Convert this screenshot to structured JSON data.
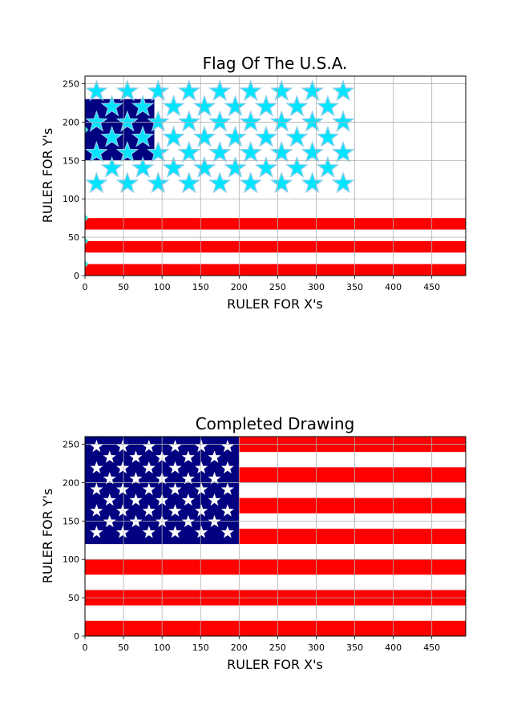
{
  "chart_data": [
    {
      "type": "flag-drawing",
      "title": "Flag Of The U.S.A.",
      "xlabel": "RULER FOR X's",
      "ylabel": "RULER FOR Y's",
      "xlim": [
        0,
        494
      ],
      "ylim": [
        0,
        260
      ],
      "xticks": [
        0,
        50,
        100,
        150,
        200,
        250,
        300,
        350,
        400,
        450
      ],
      "yticks": [
        0,
        50,
        100,
        150,
        200,
        250
      ],
      "grid": true,
      "stripes": [
        {
          "y": [
            0,
            15
          ],
          "color": "#ff0000"
        },
        {
          "y": [
            30,
            45
          ],
          "color": "#ff0000"
        },
        {
          "y": [
            60,
            75
          ],
          "color": "#ff0000"
        }
      ],
      "canton": {
        "x": [
          0,
          90
        ],
        "y": [
          150,
          230
        ],
        "color": "#000080"
      },
      "large_star_grid": {
        "rows": [
          {
            "y": 240,
            "x": [
              15,
              55,
              95,
              135,
              175,
              215,
              255,
              295,
              335
            ]
          },
          {
            "y": 220,
            "x": [
              35,
              75,
              115,
              155,
              195,
              235,
              275,
              315
            ]
          },
          {
            "y": 200,
            "x": [
              15,
              55,
              95,
              135,
              175,
              215,
              255,
              295,
              335
            ]
          },
          {
            "y": 180,
            "x": [
              35,
              75,
              115,
              155,
              195,
              235,
              275,
              315
            ]
          },
          {
            "y": 160,
            "x": [
              15,
              55,
              95,
              135,
              175,
              215,
              255,
              295,
              335
            ]
          },
          {
            "y": 140,
            "x": [
              35,
              75,
              115,
              155,
              195,
              235,
              275,
              315
            ]
          },
          {
            "y": 120,
            "x": [
              15,
              55,
              95,
              135,
              175,
              215,
              255,
              295,
              335
            ]
          }
        ],
        "back_color": "#87ceeb",
        "front_color": "#00e5ff"
      },
      "edge_markers": [
        {
          "x": 0,
          "y": 190
        },
        {
          "x": 0,
          "y": 75
        },
        {
          "x": 0,
          "y": 45
        },
        {
          "x": 0,
          "y": 15
        }
      ],
      "edge_marker_color": "#40e0d0"
    },
    {
      "type": "flag-drawing",
      "title": "Completed Drawing",
      "xlabel": "RULER FOR X's",
      "ylabel": "RULER FOR Y's",
      "xlim": [
        0,
        494
      ],
      "ylim": [
        0,
        260
      ],
      "xticks": [
        0,
        50,
        100,
        150,
        200,
        250,
        300,
        350,
        400,
        450
      ],
      "yticks": [
        0,
        50,
        100,
        150,
        200,
        250
      ],
      "grid": true,
      "stripes": [
        {
          "y": [
            0,
            20
          ],
          "color": "#ff0000"
        },
        {
          "y": [
            40,
            60
          ],
          "color": "#ff0000"
        },
        {
          "y": [
            80,
            100
          ],
          "color": "#ff0000"
        },
        {
          "y": [
            120,
            140
          ],
          "color": "#ff0000"
        },
        {
          "y": [
            160,
            180
          ],
          "color": "#ff0000"
        },
        {
          "y": [
            200,
            220
          ],
          "color": "#ff0000"
        },
        {
          "y": [
            240,
            260
          ],
          "color": "#ff0000"
        }
      ],
      "canton": {
        "x": [
          0,
          200
        ],
        "y": [
          120,
          260
        ],
        "color": "#000080"
      },
      "star_grid": {
        "rows": [
          {
            "y": 247,
            "x": [
              15,
              49,
              83,
              117,
              151,
              185
            ]
          },
          {
            "y": 233,
            "x": [
              32,
              66,
              100,
              134,
              168
            ]
          },
          {
            "y": 219,
            "x": [
              15,
              49,
              83,
              117,
              151,
              185
            ]
          },
          {
            "y": 205,
            "x": [
              32,
              66,
              100,
              134,
              168
            ]
          },
          {
            "y": 191,
            "x": [
              15,
              49,
              83,
              117,
              151,
              185
            ]
          },
          {
            "y": 177,
            "x": [
              32,
              66,
              100,
              134,
              168
            ]
          },
          {
            "y": 163,
            "x": [
              15,
              49,
              83,
              117,
              151,
              185
            ]
          },
          {
            "y": 149,
            "x": [
              32,
              66,
              100,
              134,
              168
            ]
          },
          {
            "y": 135,
            "x": [
              15,
              49,
              83,
              117,
              151,
              185
            ]
          }
        ],
        "color": "#ffffff"
      }
    }
  ]
}
